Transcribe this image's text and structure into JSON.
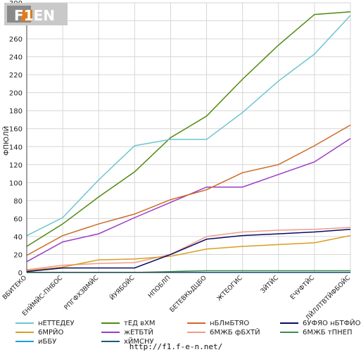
{
  "logo_text": "F1EN",
  "footer_url": "http://f1.f-e-n.net/",
  "chart_data": {
    "type": "line",
    "ylabel": "ФПЮЛЙ",
    "ylim": [
      0,
      300
    ],
    "yticks": [
      0,
      20,
      40,
      60,
      80,
      100,
      120,
      140,
      160,
      180,
      200,
      220,
      240,
      260,
      280,
      300
    ],
    "grid": true,
    "legend_position": "bottom",
    "categories": [
      "ВБИТЕКО",
      "ЕНЙМЙС-ПНБОС",
      "РПГФХЗВМЙС",
      "ЙУЯБОЙС",
      "НПОБЛП",
      "БЕТЕВКЬДЦБО",
      "ЖТЕОГИС",
      "ЗЙТЙС",
      "ЕЧУФТЙС",
      "ЛЙЛЛТВТЙФБОЙС"
    ],
    "series": [
      {
        "name": "нЕТТЕДЕУ",
        "color": "#6cc6d0",
        "values": [
          41,
          61,
          103,
          141,
          148,
          148,
          178,
          213,
          243,
          286
        ]
      },
      {
        "name": "тЕД вХМ",
        "color": "#4f8a10",
        "values": [
          29,
          54,
          84,
          112,
          150,
          174,
          215,
          253,
          287,
          290
        ]
      },
      {
        "name": "нБЛмБТЯО",
        "color": "#cc6a26",
        "values": [
          19,
          41,
          54,
          65,
          81,
          92,
          111,
          120,
          141,
          164
        ]
      },
      {
        "name": "6УФЯО нБТФЙО",
        "color": "#0b0b66",
        "values": [
          1,
          5,
          5,
          5,
          20,
          37,
          41,
          43,
          45,
          48
        ]
      },
      {
        "name": "6МРЙО",
        "color": "#d89e24",
        "values": [
          2,
          6,
          14,
          15,
          18,
          26,
          29,
          31,
          33,
          41
        ]
      },
      {
        "name": "жЕТБТЙ",
        "color": "#9b3cc7",
        "values": [
          12,
          34,
          43,
          61,
          78,
          95,
          95,
          109,
          123,
          149
        ]
      },
      {
        "name": "6МЖБ фБХТЙ",
        "color": "#ee9c8a",
        "values": [
          3,
          8,
          10,
          11,
          20,
          40,
          45,
          47,
          48,
          50
        ]
      },
      {
        "name": "6МЖБ тПНЕП",
        "color": "#3c8a5a",
        "values": [
          0,
          0,
          0,
          0,
          1,
          2,
          2,
          2,
          2,
          2
        ]
      },
      {
        "name": "иББУ",
        "color": "#1aa0dc",
        "values": [
          0,
          0,
          0,
          0,
          0,
          0,
          0,
          0,
          0,
          0
        ]
      },
      {
        "name": "хЙМСНУ",
        "color": "#1e5a78",
        "values": [
          0,
          0,
          0,
          0,
          0,
          0,
          0,
          0,
          0,
          0
        ]
      }
    ]
  }
}
